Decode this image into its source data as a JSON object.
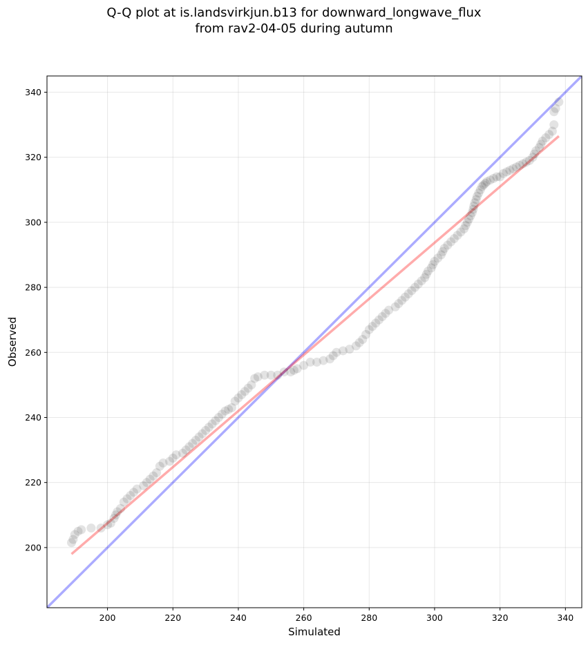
{
  "chart_data": {
    "type": "scatter",
    "title_line1": "Q-Q plot at is.landsvirkjun.b13 for downward_longwave_flux",
    "title_line2": "from rav2-04-05 during autumn",
    "xlabel": "Simulated",
    "ylabel": "Observed",
    "xlim": [
      181.5,
      345
    ],
    "ylim": [
      181.5,
      345
    ],
    "xticks": [
      200,
      220,
      240,
      260,
      280,
      300,
      320,
      340
    ],
    "yticks": [
      200,
      220,
      240,
      260,
      280,
      300,
      320,
      340
    ],
    "grid": true,
    "point_color": "#000000",
    "identity_line": {
      "color": "#0000ff",
      "from": [
        181.5,
        181.5
      ],
      "to": [
        345,
        345
      ]
    },
    "fit_line": {
      "color": "#ff0000",
      "from": [
        189,
        198
      ],
      "to": [
        338,
        326.5
      ]
    },
    "quantiles": [
      [
        189,
        201.5
      ],
      [
        189.5,
        202.5
      ],
      [
        190,
        204
      ],
      [
        191,
        205
      ],
      [
        192,
        205.5
      ],
      [
        195,
        206
      ],
      [
        198,
        206
      ],
      [
        200,
        207
      ],
      [
        201,
        207.5
      ],
      [
        202,
        209
      ],
      [
        202.5,
        210
      ],
      [
        203,
        211
      ],
      [
        204,
        212
      ],
      [
        205,
        214
      ],
      [
        206,
        215
      ],
      [
        207,
        216
      ],
      [
        208,
        217
      ],
      [
        209,
        218
      ],
      [
        211,
        219
      ],
      [
        212,
        220
      ],
      [
        213,
        221
      ],
      [
        214,
        222
      ],
      [
        215,
        223
      ],
      [
        216,
        225
      ],
      [
        217,
        226
      ],
      [
        219,
        226.5
      ],
      [
        220,
        227.5
      ],
      [
        221,
        228.5
      ],
      [
        223,
        229
      ],
      [
        224,
        230
      ],
      [
        225,
        231
      ],
      [
        226,
        232
      ],
      [
        227,
        233
      ],
      [
        228,
        234
      ],
      [
        229,
        235
      ],
      [
        230,
        236
      ],
      [
        231,
        237
      ],
      [
        232,
        238
      ],
      [
        233,
        239
      ],
      [
        234,
        240
      ],
      [
        235,
        241
      ],
      [
        236,
        242
      ],
      [
        237,
        242.5
      ],
      [
        238,
        243
      ],
      [
        239,
        245
      ],
      [
        240,
        246
      ],
      [
        241,
        247
      ],
      [
        242,
        248
      ],
      [
        243,
        249
      ],
      [
        244,
        250
      ],
      [
        245,
        252
      ],
      [
        246,
        252.5
      ],
      [
        248,
        253
      ],
      [
        250,
        253
      ],
      [
        252,
        253
      ],
      [
        254,
        254
      ],
      [
        256,
        254
      ],
      [
        257,
        254.5
      ],
      [
        258,
        255
      ],
      [
        260,
        256
      ],
      [
        262,
        257
      ],
      [
        264,
        257
      ],
      [
        266,
        257.5
      ],
      [
        268,
        258
      ],
      [
        269,
        259
      ],
      [
        270,
        260
      ],
      [
        272,
        260.5
      ],
      [
        274,
        261
      ],
      [
        276,
        262
      ],
      [
        277,
        263
      ],
      [
        278,
        264
      ],
      [
        279,
        265.5
      ],
      [
        280,
        267
      ],
      [
        281,
        268
      ],
      [
        282,
        269
      ],
      [
        283,
        270
      ],
      [
        284,
        271
      ],
      [
        285,
        272
      ],
      [
        286,
        273
      ],
      [
        288,
        274
      ],
      [
        289,
        275
      ],
      [
        290,
        276
      ],
      [
        291,
        277
      ],
      [
        292,
        278
      ],
      [
        293,
        279
      ],
      [
        294,
        280
      ],
      [
        295,
        281
      ],
      [
        296,
        282
      ],
      [
        297,
        283
      ],
      [
        297.5,
        284
      ],
      [
        298,
        285
      ],
      [
        299,
        286
      ],
      [
        299.5,
        287
      ],
      [
        300,
        288
      ],
      [
        301,
        289
      ],
      [
        302,
        290
      ],
      [
        302.5,
        291
      ],
      [
        303,
        292
      ],
      [
        304,
        293
      ],
      [
        305,
        294
      ],
      [
        306,
        295
      ],
      [
        307,
        296
      ],
      [
        308,
        297
      ],
      [
        309,
        298
      ],
      [
        309.5,
        299
      ],
      [
        310,
        300
      ],
      [
        310.5,
        301
      ],
      [
        311,
        302
      ],
      [
        311.5,
        303
      ],
      [
        311.8,
        304
      ],
      [
        312,
        305
      ],
      [
        312.3,
        306
      ],
      [
        312.7,
        307
      ],
      [
        313,
        308
      ],
      [
        313.5,
        309
      ],
      [
        314,
        310
      ],
      [
        314.5,
        311
      ],
      [
        315,
        311.5
      ],
      [
        315.5,
        312
      ],
      [
        316,
        312.5
      ],
      [
        317,
        313
      ],
      [
        318,
        313.5
      ],
      [
        319,
        314
      ],
      [
        320,
        314
      ],
      [
        321,
        315
      ],
      [
        322,
        315.5
      ],
      [
        323,
        316
      ],
      [
        324,
        316.5
      ],
      [
        325,
        317
      ],
      [
        326,
        317.5
      ],
      [
        327,
        318
      ],
      [
        328,
        318.5
      ],
      [
        329,
        319
      ],
      [
        330,
        320
      ],
      [
        330.5,
        321
      ],
      [
        331,
        322
      ],
      [
        332,
        323
      ],
      [
        332.5,
        324
      ],
      [
        333,
        325
      ],
      [
        334,
        326
      ],
      [
        335,
        327
      ],
      [
        336,
        328
      ],
      [
        336.5,
        330
      ],
      [
        336.5,
        334
      ],
      [
        337,
        335
      ],
      [
        338,
        337
      ]
    ]
  }
}
